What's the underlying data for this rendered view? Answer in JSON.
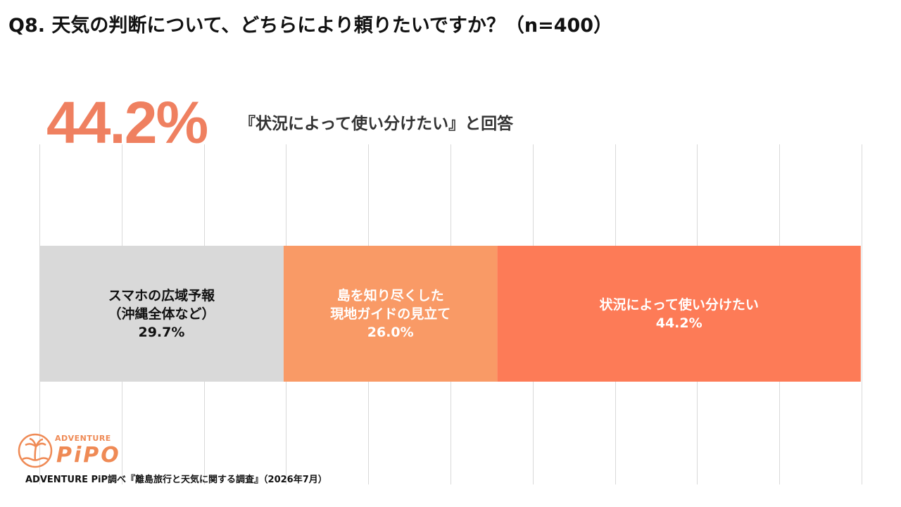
{
  "title": "Q8. 天気の判断について、どちらにより頼りたいですか？（n=400）",
  "highlight": {
    "value": "44.2%",
    "caption": "『状況によって使い分けたい』と回答"
  },
  "chart_data": {
    "type": "bar",
    "orientation": "horizontal-stacked-100",
    "xlim": [
      0,
      100
    ],
    "grid": true,
    "legend": "none",
    "series": [
      {
        "name": "スマホの広域予報（沖縄全体など）",
        "value": 29.7,
        "color": "#d9d9d9",
        "text_color": "#111111",
        "label_lines": [
          "スマホの広域予報",
          "（沖縄全体など）",
          "29.7%"
        ]
      },
      {
        "name": "島を知り尽くした現地ガイドの見立て",
        "value": 26.0,
        "color": "#f99a66",
        "text_color": "#ffffff",
        "label_lines": [
          "島を知り尽くした",
          "現地ガイドの見立て",
          "26.0%"
        ]
      },
      {
        "name": "状況によって使い分けたい",
        "value": 44.2,
        "color": "#fd7b57",
        "text_color": "#ffffff",
        "label_lines": [
          "状況によって使い分けたい",
          "44.2%"
        ]
      }
    ]
  },
  "logo": {
    "top_text": "ADVENTURE",
    "main_text": "PiPO"
  },
  "footer": "ADVENTURE PiP調べ『離島旅行と天気に関する調査』（2026年7月）"
}
